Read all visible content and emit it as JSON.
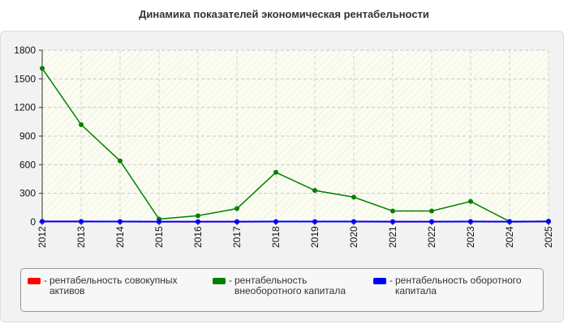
{
  "chart_data": {
    "type": "line",
    "title": "Динамика показателей экономическая рентабельности",
    "xlabel": "",
    "ylabel": "",
    "ylim": [
      0,
      1800
    ],
    "yticks": [
      0,
      300,
      600,
      900,
      1200,
      1500,
      1800
    ],
    "categories": [
      "2012",
      "2013",
      "2014",
      "2015",
      "2016",
      "2017",
      "2018",
      "2019",
      "2020",
      "2021",
      "2022",
      "2023",
      "2024",
      "2025"
    ],
    "grid": true,
    "legend_position": "bottom",
    "series": [
      {
        "name": "рентабельность совокупных активов",
        "color": "#ff0000",
        "values": [
          3,
          2,
          2,
          1,
          1,
          1,
          2,
          2,
          2,
          1,
          1,
          2,
          1,
          2
        ]
      },
      {
        "name": "рентабельность внеоборотного капитала",
        "color": "#008000",
        "values": [
          1610,
          1020,
          640,
          30,
          65,
          140,
          520,
          330,
          260,
          115,
          115,
          215,
          5,
          8
        ]
      },
      {
        "name": "рентабельность оборотного капитала",
        "color": "#0000ff",
        "values": [
          5,
          5,
          4,
          3,
          3,
          3,
          4,
          4,
          4,
          3,
          3,
          4,
          3,
          5
        ]
      }
    ]
  },
  "legend": {
    "items": [
      {
        "dash": "-",
        "label_lines": [
          "рентабельность совокупных",
          "активов"
        ],
        "color": "#ff0000"
      },
      {
        "dash": "-",
        "label_lines": [
          "рентабельность",
          "внеоборотного капитала"
        ],
        "color": "#008000"
      },
      {
        "dash": "-",
        "label_lines": [
          "рентабельность оборотного",
          "капитала"
        ],
        "color": "#0000ff"
      }
    ]
  }
}
